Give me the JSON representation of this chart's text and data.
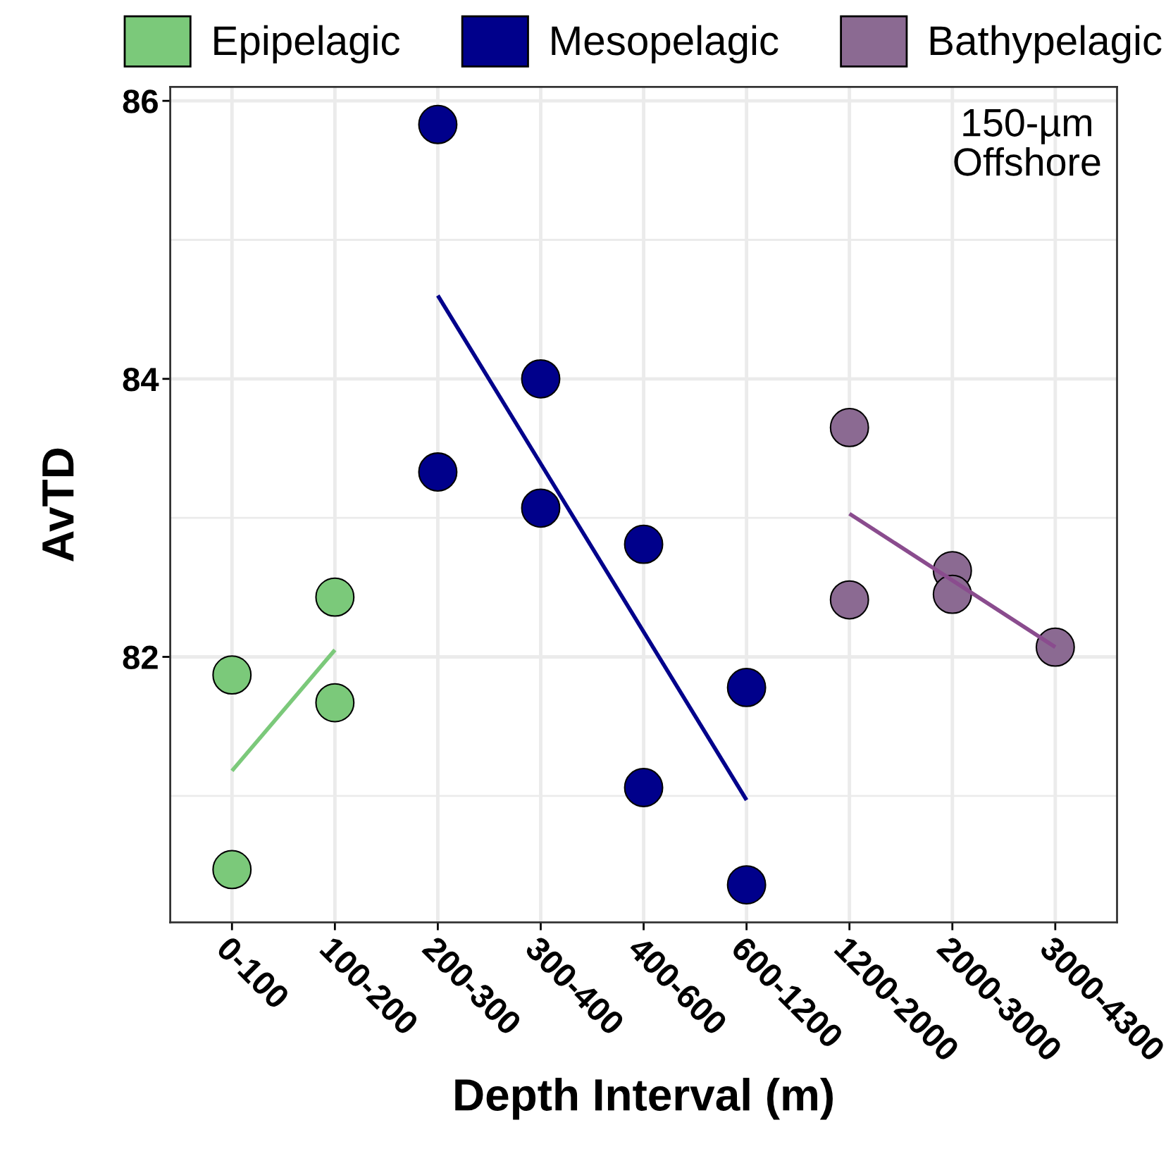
{
  "chart_data": {
    "type": "scatter",
    "xlabel": "Depth Interval (m)",
    "ylabel": "AvTD",
    "categories": [
      "0-100",
      "100-200",
      "200-300",
      "300-400",
      "400-600",
      "600-1200",
      "1200-2000",
      "2000-3000",
      "3000-4300"
    ],
    "ylim": [
      80.09,
      86.1
    ],
    "yticks": [
      {
        "value": 81,
        "label": null
      },
      82,
      {
        "value": 83,
        "label": null
      },
      84,
      {
        "value": 85,
        "label": null
      },
      86
    ],
    "grid": true,
    "legend": "top",
    "annotations": [
      "150-µm\nOffshore"
    ],
    "series": [
      {
        "name": "Epipelagic",
        "color": "#7bc97a",
        "marker": "circle",
        "x": [
          "0-100",
          "0-100",
          "100-200",
          "100-200"
        ],
        "values": [
          81.87,
          80.47,
          82.43,
          81.67
        ]
      },
      {
        "name": "Mesopelagic",
        "color": "#00008b",
        "marker": "circle",
        "x": [
          "200-300",
          "200-300",
          "300-400",
          "300-400",
          "400-600",
          "400-600",
          "600-1200",
          "600-1200"
        ],
        "values": [
          85.83,
          83.33,
          84.0,
          83.07,
          82.81,
          81.06,
          81.78,
          80.36
        ]
      },
      {
        "name": "Bathypelagic",
        "color": "#8b6a92",
        "marker": "circle",
        "x": [
          "1200-2000",
          "1200-2000",
          "2000-3000",
          "2000-3000",
          "3000-4300"
        ],
        "values": [
          83.65,
          82.41,
          82.62,
          82.45,
          82.07
        ]
      },
      {
        "type": "line",
        "color": "#7bc97a",
        "x": [
          "0-100",
          "100-200"
        ],
        "values": [
          81.18,
          82.05
        ]
      },
      {
        "type": "line",
        "color": "#00008b",
        "x": [
          "200-300",
          "600-1200"
        ],
        "values": [
          84.6,
          80.97
        ]
      },
      {
        "type": "line",
        "color": "#8a4c8e",
        "x": [
          "1200-2000",
          "3000-4300"
        ],
        "values": [
          83.03,
          82.07
        ]
      }
    ]
  }
}
